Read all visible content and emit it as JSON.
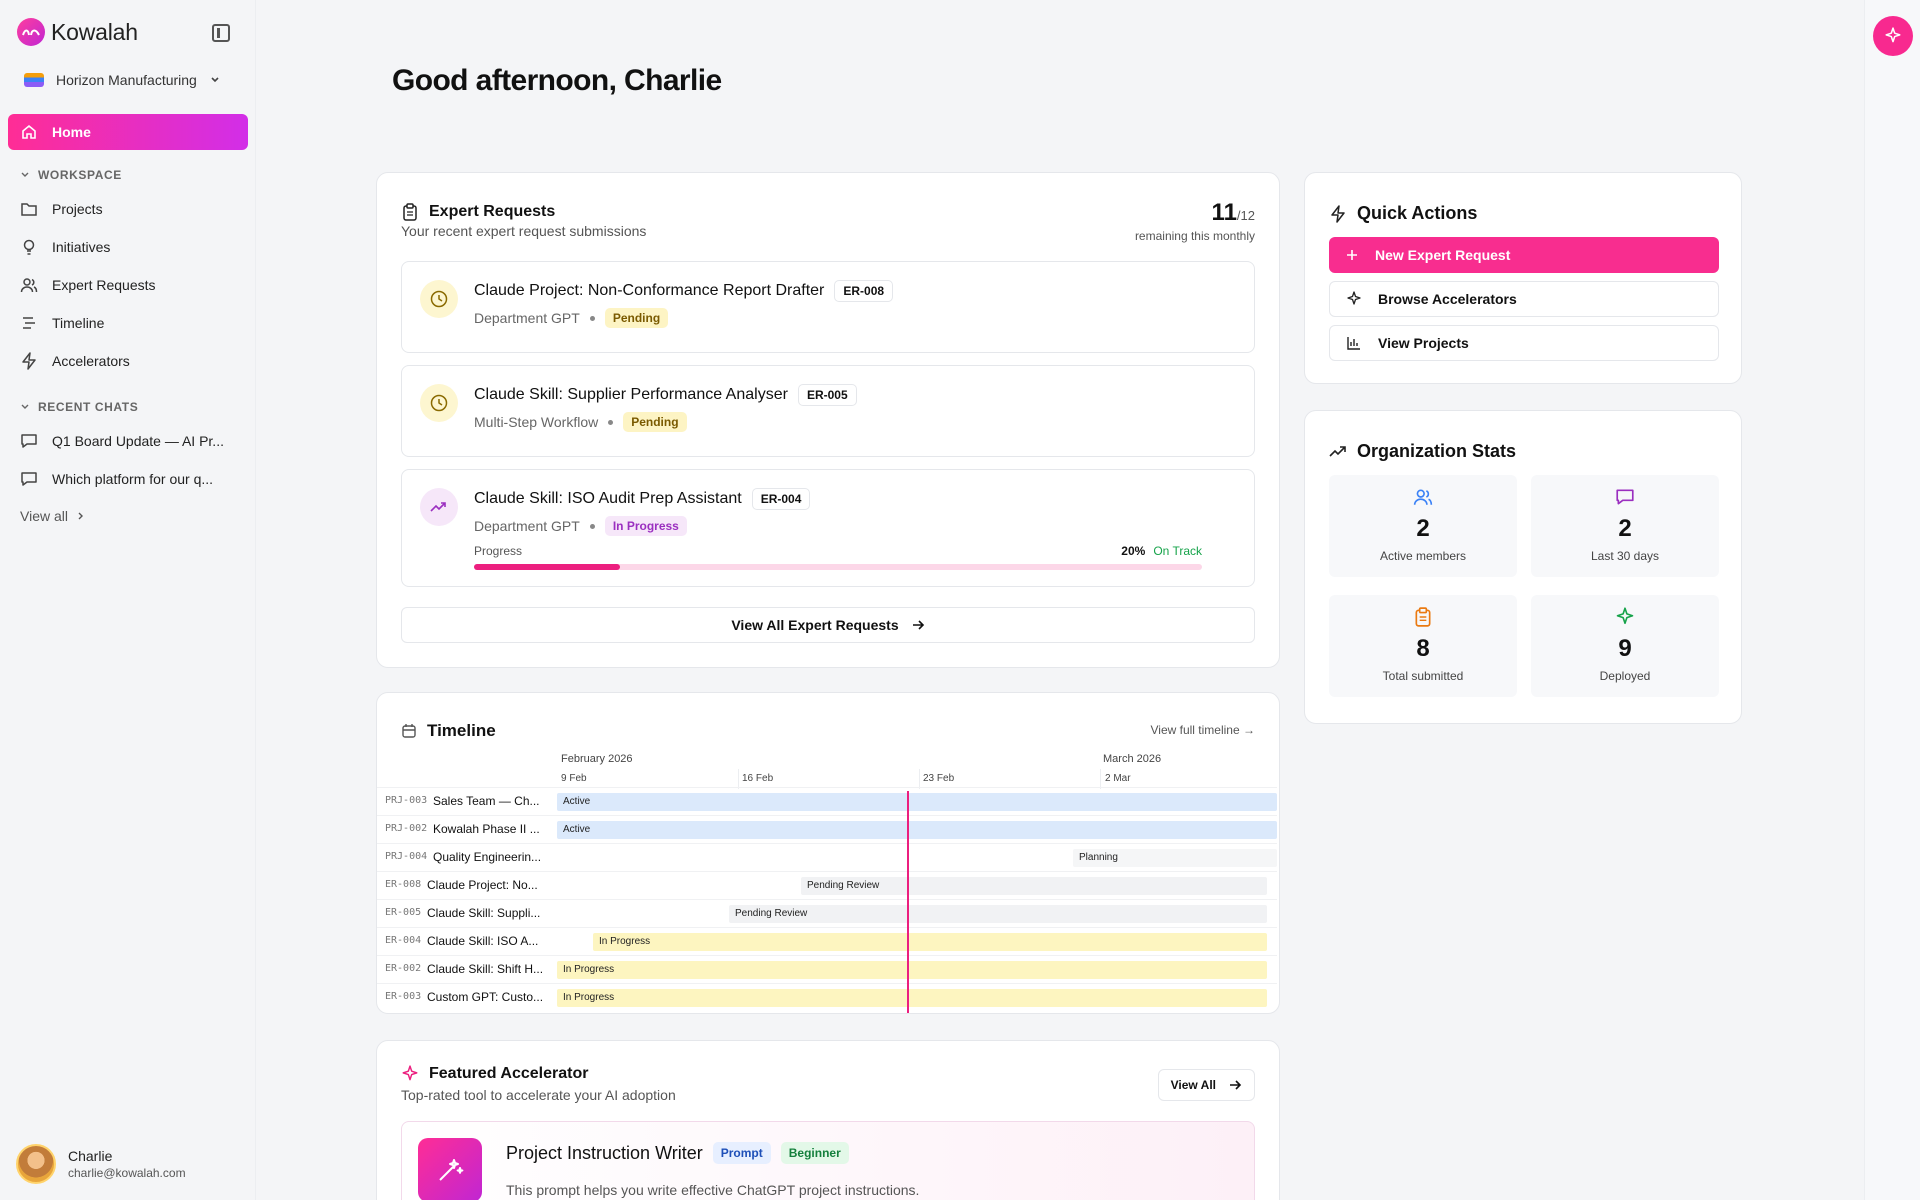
{
  "app": {
    "name": "Kowalah",
    "org": "Horizon Manufacturing"
  },
  "sidebar": {
    "home_label": "Home",
    "workspace_label": "WORKSPACE",
    "workspace_items": [
      {
        "label": "Projects",
        "icon": "folder-icon"
      },
      {
        "label": "Initiatives",
        "icon": "lightbulb-icon"
      },
      {
        "label": "Expert Requests",
        "icon": "users-icon"
      },
      {
        "label": "Timeline",
        "icon": "timeline-icon"
      },
      {
        "label": "Accelerators",
        "icon": "bolt-icon"
      }
    ],
    "recent_label": "RECENT CHATS",
    "recent_chats": [
      "Q1 Board Update — AI Pr...",
      "Which platform for our q..."
    ],
    "view_all": "View all",
    "user": {
      "name": "Charlie",
      "email": "charlie@kowalah.com"
    }
  },
  "greeting": "Good afternoon, Charlie",
  "expert_requests": {
    "title": "Expert Requests",
    "subtitle": "Your recent expert request submissions",
    "remaining_count": "11",
    "remaining_total": "/12",
    "remaining_label": "remaining this monthly",
    "items": [
      {
        "title": "Claude Project: Non-Conformance Report Drafter",
        "id": "ER-008",
        "type": "Department GPT",
        "status": "Pending"
      },
      {
        "title": "Claude Skill: Supplier Performance Analyser",
        "id": "ER-005",
        "type": "Multi-Step Workflow",
        "status": "Pending"
      },
      {
        "title": "Claude Skill: ISO Audit Prep Assistant",
        "id": "ER-004",
        "type": "Department GPT",
        "status": "In Progress",
        "progress_label": "Progress",
        "progress_pct": "20%",
        "progress_value": 20,
        "progress_status": "On Track"
      }
    ],
    "view_all_label": "View All Expert Requests"
  },
  "quick_actions": {
    "title": "Quick Actions",
    "new_request": "New Expert Request",
    "browse": "Browse Accelerators",
    "view_projects": "View Projects"
  },
  "org_stats": {
    "title": "Organization Stats",
    "stats": [
      {
        "value": "2",
        "label": "Active members"
      },
      {
        "value": "2",
        "label": "Last 30 days"
      },
      {
        "value": "8",
        "label": "Total submitted"
      },
      {
        "value": "9",
        "label": "Deployed"
      }
    ]
  },
  "timeline": {
    "title": "Timeline",
    "view_full": "View full timeline",
    "months": [
      "February 2026",
      "March 2026"
    ],
    "weeks": [
      "9 Feb",
      "16 Feb",
      "23 Feb",
      "2 Mar"
    ],
    "rows": [
      {
        "id": "PRJ-003",
        "name": "Sales Team — Ch...",
        "status": "Active"
      },
      {
        "id": "PRJ-002",
        "name": "Kowalah Phase II ...",
        "status": "Active"
      },
      {
        "id": "PRJ-004",
        "name": "Quality Engineerin...",
        "status": "Planning"
      },
      {
        "id": "ER-008",
        "name": "Claude Project: No...",
        "status": "Pending Review"
      },
      {
        "id": "ER-005",
        "name": "Claude Skill: Suppli...",
        "status": "Pending Review"
      },
      {
        "id": "ER-004",
        "name": "Claude Skill: ISO A...",
        "status": "In Progress"
      },
      {
        "id": "ER-002",
        "name": "Claude Skill: Shift H...",
        "status": "In Progress"
      },
      {
        "id": "ER-003",
        "name": "Custom GPT: Custo...",
        "status": "In Progress"
      }
    ]
  },
  "featured": {
    "title": "Featured Accelerator",
    "subtitle": "Top-rated tool to accelerate your AI adoption",
    "view_all": "View All",
    "item": {
      "name": "Project Instruction Writer",
      "tags": [
        "Prompt",
        "Beginner"
      ],
      "desc": "This prompt helps you write effective ChatGPT project instructions."
    }
  },
  "colors": {
    "accent": "#f82d8f",
    "accent2": "#d22ee8"
  }
}
